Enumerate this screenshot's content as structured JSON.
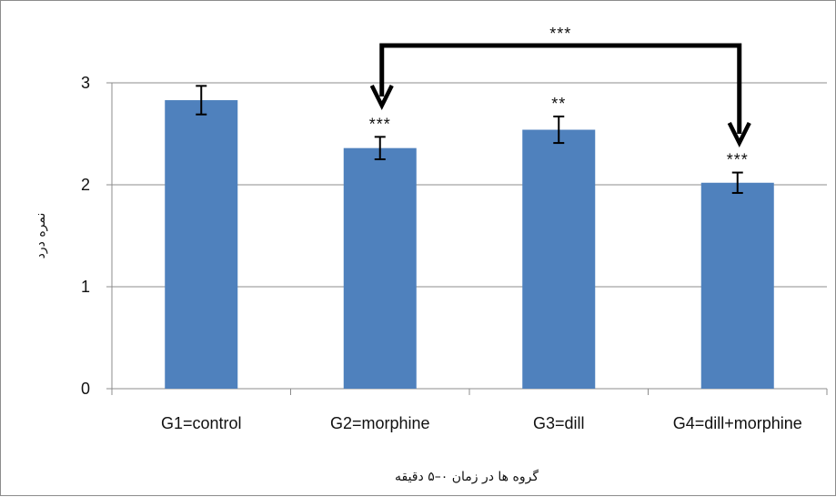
{
  "chart_data": {
    "type": "bar",
    "title": "",
    "xlabel": "گروه ها در زمان ۰–۵ دقیقه",
    "ylabel": "نمره درد",
    "categories": [
      "G1=control",
      "G2=morphine",
      "G3=dill",
      "G4=dill+morphine"
    ],
    "values": [
      2.83,
      2.36,
      2.54,
      2.02
    ],
    "errors": [
      0.14,
      0.11,
      0.13,
      0.1
    ],
    "significance": [
      "",
      "***",
      "**",
      "***"
    ],
    "comparison": {
      "from": "G2=morphine",
      "to": "G4=dill+morphine",
      "label": "***"
    },
    "ylim": [
      0,
      3
    ],
    "yticks": [
      "0",
      "1",
      "2",
      "3"
    ],
    "grid": true,
    "bar_color": "#4f81bd",
    "grid_color": "#8c8c8c"
  }
}
